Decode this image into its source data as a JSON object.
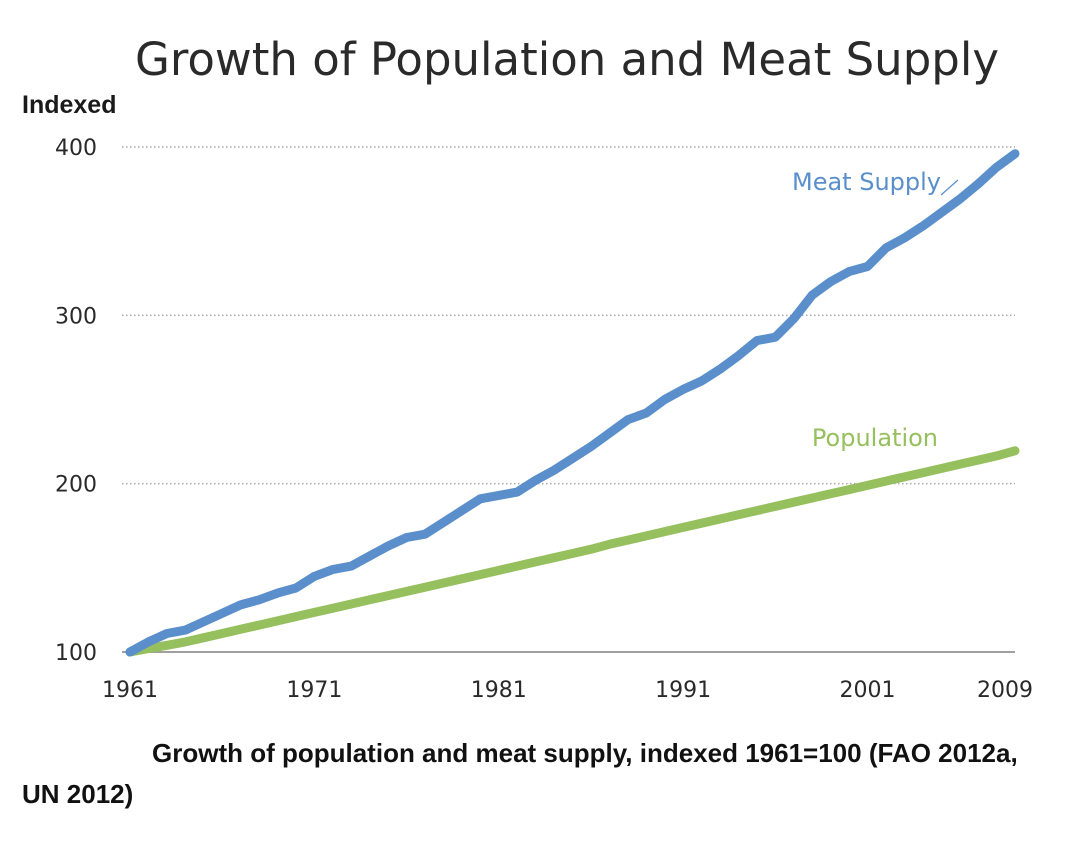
{
  "caption": "Growth of population and meat supply, indexed 1961=100 (FAO 2012a, UN 2012)",
  "colors": {
    "meat": "#5b8fcb",
    "population": "#96c05e",
    "grid": "#a8a8a8",
    "baseline": "#a0a0a0"
  },
  "chart_data": {
    "type": "line",
    "title": "Growth of Population and Meat Supply",
    "xlabel": "",
    "ylabel": "Indexed",
    "xlim": [
      1961,
      2009
    ],
    "ylim": [
      100,
      400
    ],
    "x_ticks": [
      1961,
      1971,
      1981,
      1991,
      2001,
      2009
    ],
    "y_ticks": [
      100,
      200,
      300,
      400
    ],
    "grid": "horizontal dotted",
    "legend": "inline labels",
    "x": [
      1961,
      1962,
      1963,
      1964,
      1965,
      1966,
      1967,
      1968,
      1969,
      1970,
      1971,
      1972,
      1973,
      1974,
      1975,
      1976,
      1977,
      1978,
      1979,
      1980,
      1981,
      1982,
      1983,
      1984,
      1985,
      1986,
      1987,
      1988,
      1989,
      1990,
      1991,
      1992,
      1993,
      1994,
      1995,
      1996,
      1997,
      1998,
      1999,
      2000,
      2001,
      2002,
      2003,
      2004,
      2005,
      2006,
      2007,
      2008,
      2009
    ],
    "series": [
      {
        "name": "Meat Supply",
        "color": "#5b8fcb",
        "values": [
          100,
          106,
          111,
          113,
          118,
          123,
          128,
          131,
          135,
          138,
          145,
          149,
          151,
          157,
          163,
          168,
          170,
          177,
          184,
          191,
          193,
          195,
          202,
          208,
          215,
          222,
          230,
          238,
          242,
          250,
          256,
          261,
          268,
          276,
          285,
          287,
          298,
          312,
          320,
          326,
          329,
          340,
          346,
          353,
          361,
          369,
          378,
          388,
          396
        ]
      },
      {
        "name": "Population",
        "color": "#96c05e",
        "values": [
          100,
          102,
          104,
          106,
          108.5,
          111,
          113.5,
          116,
          118.5,
          121,
          123.5,
          126,
          128.5,
          131,
          133.5,
          136,
          138.5,
          141,
          143.5,
          146,
          148.5,
          151,
          153.5,
          156,
          158.5,
          161,
          164,
          166.5,
          169,
          171.5,
          174,
          176.5,
          179,
          181.5,
          184,
          186.5,
          189,
          191.5,
          194,
          196.5,
          199,
          201.5,
          204,
          206.5,
          209,
          211.5,
          214,
          216.5,
          219.5
        ]
      }
    ]
  }
}
